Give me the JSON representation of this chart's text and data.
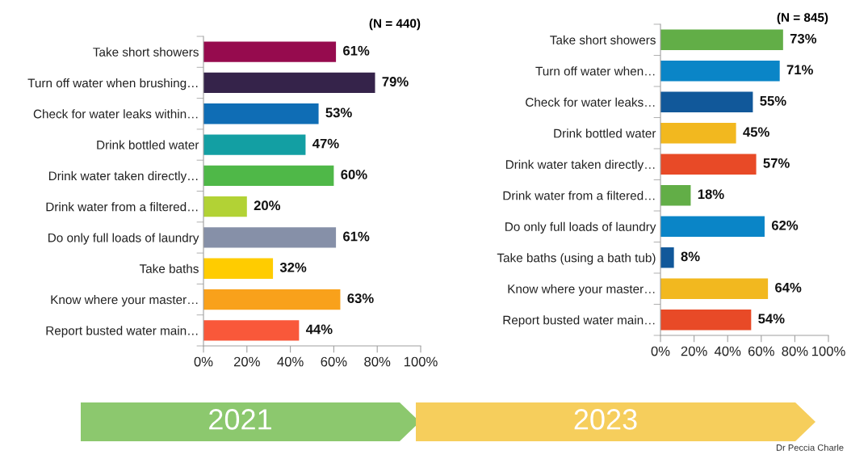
{
  "chart_data": [
    {
      "type": "bar",
      "orientation": "horizontal",
      "categories": [
        "Take short showers",
        "Turn off water when brushing…",
        "Check for water leaks within…",
        "Drink bottled water",
        "Drink water taken directly…",
        "Drink water from a filtered…",
        "Do only full loads of laundry",
        "Take baths",
        "Know where your master…",
        "Report busted water main…"
      ],
      "values": [
        61,
        79,
        53,
        47,
        60,
        20,
        61,
        32,
        63,
        44
      ],
      "colors": [
        "#960b4e",
        "#35234a",
        "#0f6db5",
        "#139fa3",
        "#4fb848",
        "#b2d235",
        "#8690a8",
        "#ffcc00",
        "#f9a11b",
        "#f9583a"
      ],
      "value_labels": [
        "61%",
        "79%",
        "53%",
        "47%",
        "60%",
        "20%",
        "61%",
        "32%",
        "63%",
        "44%"
      ],
      "xlim": [
        0,
        100
      ],
      "xticks": [
        {
          "value": 0,
          "label": "0%"
        },
        {
          "value": 20,
          "label": "20%"
        },
        {
          "value": 40,
          "label": "40%"
        },
        {
          "value": 60,
          "label": "60%"
        },
        {
          "value": 80,
          "label": "80%"
        },
        {
          "value": 100,
          "label": "100%"
        }
      ],
      "annotations": [
        "(N = 440)",
        "2021"
      ]
    },
    {
      "type": "bar",
      "orientation": "horizontal",
      "categories": [
        "Take short showers",
        "Turn off water when…",
        "Check for water leaks…",
        "Drink bottled water",
        "Drink water taken directly…",
        "Drink water from a filtered…",
        "Do only full loads of laundry",
        "Take baths (using a bath tub)",
        "Know where your master…",
        "Report busted water main…"
      ],
      "values": [
        73,
        71,
        55,
        45,
        57,
        18,
        62,
        8,
        64,
        54
      ],
      "colors": [
        "#62ae47",
        "#0a85c7",
        "#11589a",
        "#f2b81f",
        "#e84a27",
        "#62ae47",
        "#0a85c7",
        "#11589a",
        "#f2b81f",
        "#e84a27"
      ],
      "value_labels": [
        "73%",
        "71%",
        "55%",
        "45%",
        "57%",
        "18%",
        "62%",
        "8%",
        "64%",
        "54%"
      ],
      "xlim": [
        0,
        100
      ],
      "xticks": [
        {
          "value": 0,
          "label": "0%"
        },
        {
          "value": 20,
          "label": "20%"
        },
        {
          "value": 40,
          "label": "40%"
        },
        {
          "value": 60,
          "label": "60%"
        },
        {
          "value": 80,
          "label": "80%"
        },
        {
          "value": 100,
          "label": "100%"
        }
      ],
      "annotations": [
        "(N = 845)",
        "2023",
        "Dr Peccia Charle"
      ]
    }
  ]
}
